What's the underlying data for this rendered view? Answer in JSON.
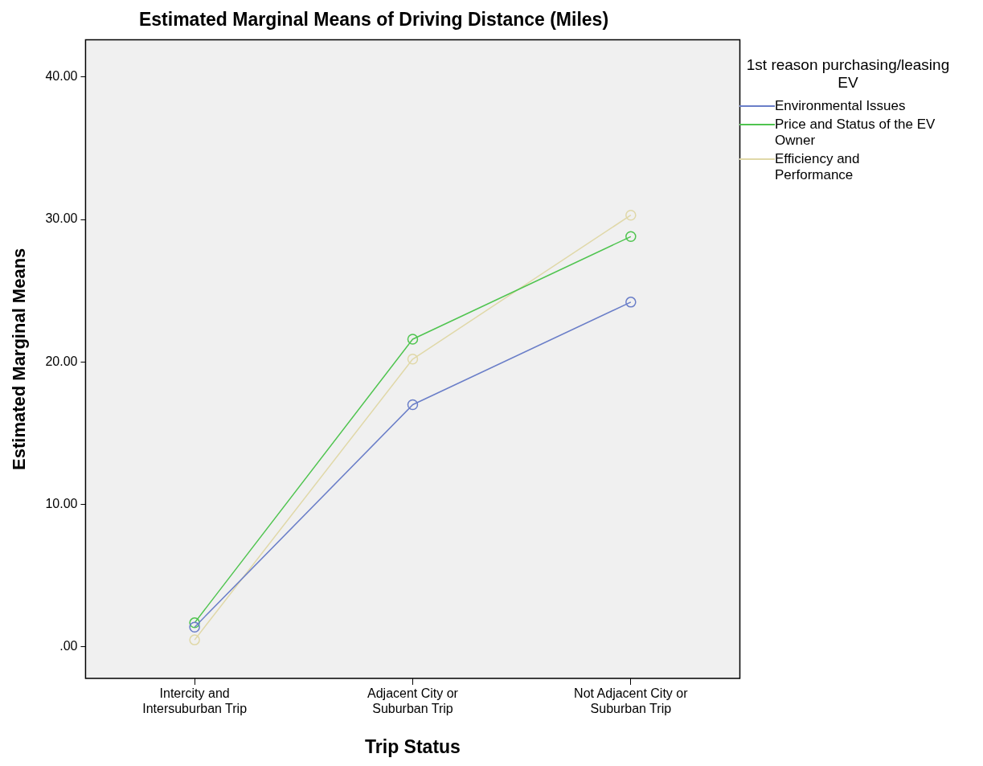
{
  "chart_data": {
    "type": "line",
    "title": "Estimated Marginal Means of Driving Distance (Miles)",
    "xlabel": "Trip Status",
    "ylabel": "Estimated Marginal Means",
    "legend_title": "1st reason purchasing/leasing EV",
    "legend": "right",
    "marker": "circle",
    "categories": [
      "Intercity and Intersuburban Trip",
      "Adjacent City or Suburban Trip",
      "Not Adjacent City or Suburban Trip"
    ],
    "ylim": [
      -2.2,
      42.6
    ],
    "yticks": [
      {
        "value": 0,
        "label": ".00"
      },
      {
        "value": 10,
        "label": "10.00"
      },
      {
        "value": 20,
        "label": "20.00"
      },
      {
        "value": 30,
        "label": "30.00"
      },
      {
        "value": 40,
        "label": "40.00"
      }
    ],
    "series": [
      {
        "name": "Environmental Issues",
        "color": "#6a7ec8",
        "values": [
          1.4,
          17.0,
          24.2
        ]
      },
      {
        "name": "Price and Status of the EV Owner",
        "color": "#4fc44f",
        "values": [
          1.7,
          21.6,
          28.8
        ]
      },
      {
        "name": "Efficiency and Performance",
        "color": "#e0d8a8",
        "values": [
          0.5,
          20.2,
          30.3
        ]
      }
    ]
  }
}
